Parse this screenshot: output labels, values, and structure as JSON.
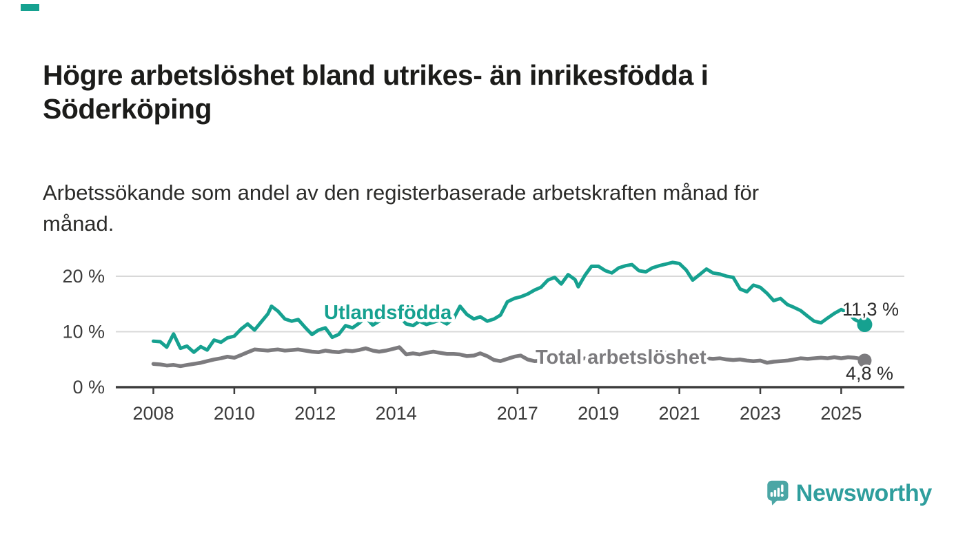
{
  "page": {
    "title": "Högre arbetslöshet bland utrikes- än inrikesfödda i\nSöderköping",
    "subtitle": "Arbetssökande som andel av den registerbaserade arbetskraften månad för\nmånad.",
    "brand": "Newsworthy"
  },
  "colors": {
    "teal_line": "#16a190",
    "gray_line": "#7c7b7e",
    "logo_teal": "#2f9e9d",
    "logo_bubble": "#4ba6a5",
    "grid": "#d8d8d8",
    "axis": "#3d3d3d",
    "tick_text": "#3c3c3c",
    "annotation_text": "#2e2e2e",
    "top_mark": "#16a190"
  },
  "chart_data": {
    "type": "line",
    "title": "Högre arbetslöshet bland utrikes- än inrikesfödda i Söderköping",
    "subtitle": "Arbetssökande som andel av den registerbaserade arbetskraften månad för månad.",
    "xlabel": "",
    "ylabel": "",
    "xlim": [
      2007.0,
      2026.6
    ],
    "ylim": [
      0,
      24
    ],
    "grid": "horizontal",
    "legend_position": "inline-labels",
    "x_ticks": [
      2008,
      2010,
      2012,
      2014,
      2017,
      2019,
      2021,
      2023,
      2025
    ],
    "y_ticks": [
      {
        "v": 0,
        "label": "0 %"
      },
      {
        "v": 10,
        "label": "10 %"
      },
      {
        "v": 20,
        "label": "20 %"
      }
    ],
    "series": [
      {
        "name": "Utlandsfödda",
        "color": "#16a190",
        "end_value": 11.3,
        "end_label": "11,3 %"
      },
      {
        "name": "Total arbetslöshet",
        "color": "#7c7b7e",
        "end_value": 4.8,
        "end_label": "4,8 %"
      }
    ],
    "points": [
      [
        2008.0,
        8.3,
        4.2
      ],
      [
        2008.17,
        8.2,
        4.1
      ],
      [
        2008.33,
        7.2,
        3.9
      ],
      [
        2008.5,
        9.6,
        4.0
      ],
      [
        2008.67,
        7.0,
        3.8
      ],
      [
        2008.83,
        7.4,
        4.0
      ],
      [
        2009.0,
        6.3,
        4.2
      ],
      [
        2009.17,
        7.3,
        4.4
      ],
      [
        2009.33,
        6.7,
        4.7
      ],
      [
        2009.5,
        8.5,
        5.0
      ],
      [
        2009.67,
        8.1,
        5.2
      ],
      [
        2009.83,
        8.9,
        5.5
      ],
      [
        2010.0,
        9.2,
        5.3
      ],
      [
        2010.17,
        10.5,
        5.8
      ],
      [
        2010.33,
        11.4,
        6.3
      ],
      [
        2010.5,
        10.3,
        6.8
      ],
      [
        2010.67,
        11.8,
        6.7
      ],
      [
        2010.83,
        13.2,
        6.6
      ],
      [
        2010.92,
        14.6,
        6.7
      ],
      [
        2011.08,
        13.7,
        6.8
      ],
      [
        2011.25,
        12.3,
        6.6
      ],
      [
        2011.42,
        11.9,
        6.7
      ],
      [
        2011.58,
        12.2,
        6.8
      ],
      [
        2011.75,
        10.8,
        6.6
      ],
      [
        2011.92,
        9.5,
        6.4
      ],
      [
        2012.08,
        10.3,
        6.3
      ],
      [
        2012.25,
        10.7,
        6.6
      ],
      [
        2012.42,
        9.0,
        6.4
      ],
      [
        2012.58,
        9.5,
        6.3
      ],
      [
        2012.75,
        11.1,
        6.6
      ],
      [
        2012.92,
        10.7,
        6.5
      ],
      [
        2013.08,
        11.5,
        6.7
      ],
      [
        2013.25,
        12.6,
        7.0
      ],
      [
        2013.42,
        11.2,
        6.6
      ],
      [
        2013.58,
        11.9,
        6.4
      ],
      [
        2013.75,
        12.6,
        6.6
      ],
      [
        2013.92,
        12.2,
        6.9
      ],
      [
        2014.08,
        12.8,
        7.2
      ],
      [
        2014.25,
        11.4,
        5.9
      ],
      [
        2014.42,
        11.1,
        6.1
      ],
      [
        2014.58,
        11.9,
        5.9
      ],
      [
        2014.75,
        11.3,
        6.2
      ],
      [
        2014.92,
        11.7,
        6.4
      ],
      [
        2015.08,
        12.1,
        6.2
      ],
      [
        2015.25,
        11.4,
        6.0
      ],
      [
        2015.42,
        12.4,
        6.0
      ],
      [
        2015.58,
        14.6,
        5.9
      ],
      [
        2015.75,
        13.1,
        5.6
      ],
      [
        2015.92,
        12.3,
        5.7
      ],
      [
        2016.08,
        12.7,
        6.1
      ],
      [
        2016.25,
        11.9,
        5.6
      ],
      [
        2016.42,
        12.3,
        4.9
      ],
      [
        2016.58,
        13.0,
        4.7
      ],
      [
        2016.75,
        15.4,
        5.1
      ],
      [
        2016.92,
        16.0,
        5.5
      ],
      [
        2017.08,
        16.3,
        5.7
      ],
      [
        2017.25,
        16.8,
        5.0
      ],
      [
        2017.42,
        17.5,
        4.7
      ],
      [
        2017.58,
        18.0,
        4.8
      ],
      [
        2017.75,
        19.3,
        5.0
      ],
      [
        2017.92,
        19.8,
        5.2
      ],
      [
        2018.08,
        18.6,
        5.3
      ],
      [
        2018.25,
        20.3,
        5.1
      ],
      [
        2018.42,
        19.4,
        5.0
      ],
      [
        2018.5,
        18.1,
        5.0
      ],
      [
        2018.67,
        20.2,
        5.2
      ],
      [
        2018.83,
        21.8,
        5.3
      ],
      [
        2019.0,
        21.8,
        5.4
      ],
      [
        2019.17,
        21.0,
        5.2
      ],
      [
        2019.33,
        20.6,
        5.1
      ],
      [
        2019.5,
        21.5,
        5.3
      ],
      [
        2019.67,
        21.9,
        5.5
      ],
      [
        2019.83,
        22.1,
        5.6
      ],
      [
        2020.0,
        21.0,
        5.8
      ],
      [
        2020.17,
        20.8,
        6.2
      ],
      [
        2020.33,
        21.5,
        6.5
      ],
      [
        2020.5,
        21.9,
        6.4
      ],
      [
        2020.67,
        22.2,
        6.2
      ],
      [
        2020.83,
        22.5,
        6.0
      ],
      [
        2021.0,
        22.3,
        5.8
      ],
      [
        2021.17,
        21.1,
        5.6
      ],
      [
        2021.33,
        19.3,
        5.4
      ],
      [
        2021.5,
        20.3,
        5.3
      ],
      [
        2021.67,
        21.3,
        5.2
      ],
      [
        2021.83,
        20.6,
        5.1
      ],
      [
        2022.0,
        20.4,
        5.2
      ],
      [
        2022.17,
        20.0,
        5.0
      ],
      [
        2022.33,
        19.8,
        4.9
      ],
      [
        2022.5,
        17.7,
        5.0
      ],
      [
        2022.67,
        17.2,
        4.8
      ],
      [
        2022.83,
        18.4,
        4.7
      ],
      [
        2023.0,
        18.0,
        4.8
      ],
      [
        2023.17,
        16.9,
        4.4
      ],
      [
        2023.33,
        15.6,
        4.6
      ],
      [
        2023.5,
        16.0,
        4.7
      ],
      [
        2023.67,
        14.9,
        4.8
      ],
      [
        2023.83,
        14.4,
        5.0
      ],
      [
        2024.0,
        13.8,
        5.2
      ],
      [
        2024.17,
        12.8,
        5.1
      ],
      [
        2024.33,
        11.9,
        5.2
      ],
      [
        2024.5,
        11.6,
        5.3
      ],
      [
        2024.67,
        12.5,
        5.2
      ],
      [
        2024.83,
        13.3,
        5.4
      ],
      [
        2025.0,
        14.0,
        5.2
      ],
      [
        2025.17,
        13.4,
        5.4
      ],
      [
        2025.33,
        12.2,
        5.3
      ],
      [
        2025.5,
        11.6,
        5.1
      ],
      [
        2025.58,
        11.3,
        4.8
      ]
    ]
  }
}
